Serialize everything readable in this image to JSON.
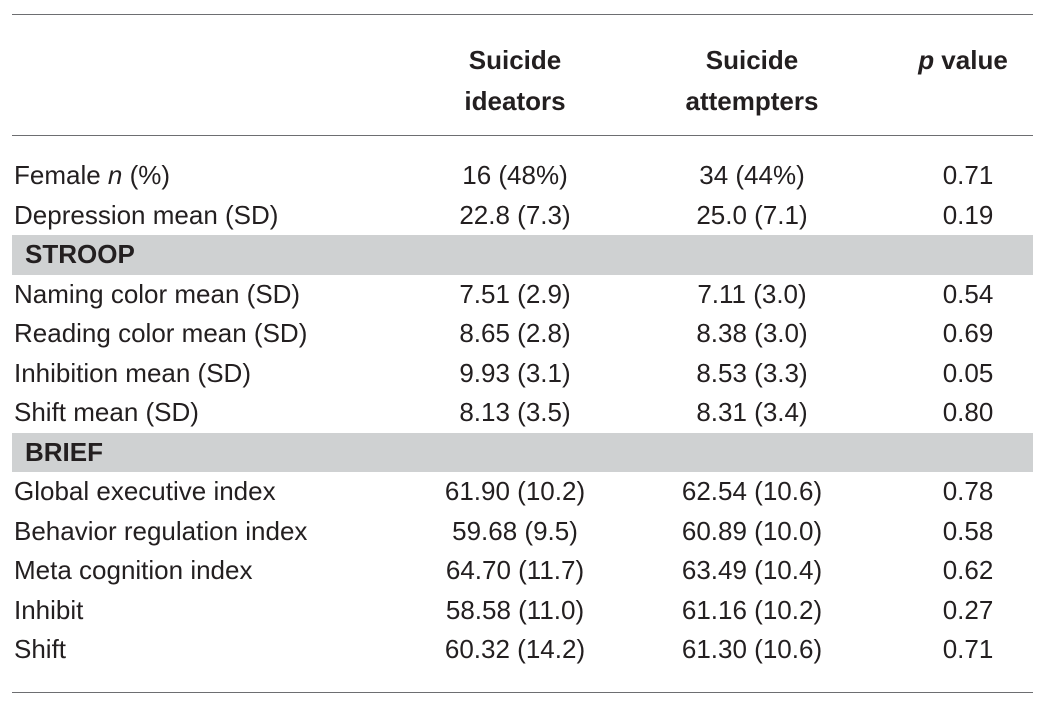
{
  "header": {
    "col_ideators_line1": "Suicide",
    "col_ideators_line2": "ideators",
    "col_attempters_line1": "Suicide",
    "col_attempters_line2": "attempters",
    "col_p_italic": "p",
    "col_p_rest": " value"
  },
  "rows_top": [
    {
      "label_pre": "Female ",
      "label_italic": "n",
      "label_post": " (%)",
      "ideators": "16 (48%)",
      "attempters": "34 (44%)",
      "p": "0.71"
    },
    {
      "label_pre": "Depression mean (SD)",
      "label_italic": "",
      "label_post": "",
      "ideators": "22.8 (7.3)",
      "attempters": "25.0 (7.1)",
      "p": "0.19"
    }
  ],
  "section_stroop": {
    "title": "STROOP",
    "rows": [
      {
        "label": "Naming color mean (SD)",
        "ideators": "7.51 (2.9)",
        "attempters": "7.11 (3.0)",
        "p": "0.54"
      },
      {
        "label": "Reading color mean (SD)",
        "ideators": "8.65 (2.8)",
        "attempters": "8.38 (3.0)",
        "p": "0.69"
      },
      {
        "label": "Inhibition mean (SD)",
        "ideators": "9.93 (3.1)",
        "attempters": "8.53 (3.3)",
        "p": "0.05"
      },
      {
        "label": "Shift mean (SD)",
        "ideators": "8.13 (3.5)",
        "attempters": "8.31 (3.4)",
        "p": "0.80"
      }
    ]
  },
  "section_brief": {
    "title": "BRIEF",
    "rows": [
      {
        "label": "Global executive index",
        "ideators": "61.90 (10.2)",
        "attempters": "62.54 (10.6)",
        "p": "0.78"
      },
      {
        "label": "Behavior regulation index",
        "ideators": "59.68 (9.5)",
        "attempters": "60.89 (10.0)",
        "p": "0.58"
      },
      {
        "label": "Meta cognition index",
        "ideators": "64.70 (11.7)",
        "attempters": "63.49 (10.4)",
        "p": "0.62"
      },
      {
        "label": "Inhibit",
        "ideators": "58.58 (11.0)",
        "attempters": "61.16 (10.2)",
        "p": "0.27"
      },
      {
        "label": "Shift",
        "ideators": "60.32 (14.2)",
        "attempters": "61.30 (10.6)",
        "p": "0.71"
      }
    ]
  }
}
